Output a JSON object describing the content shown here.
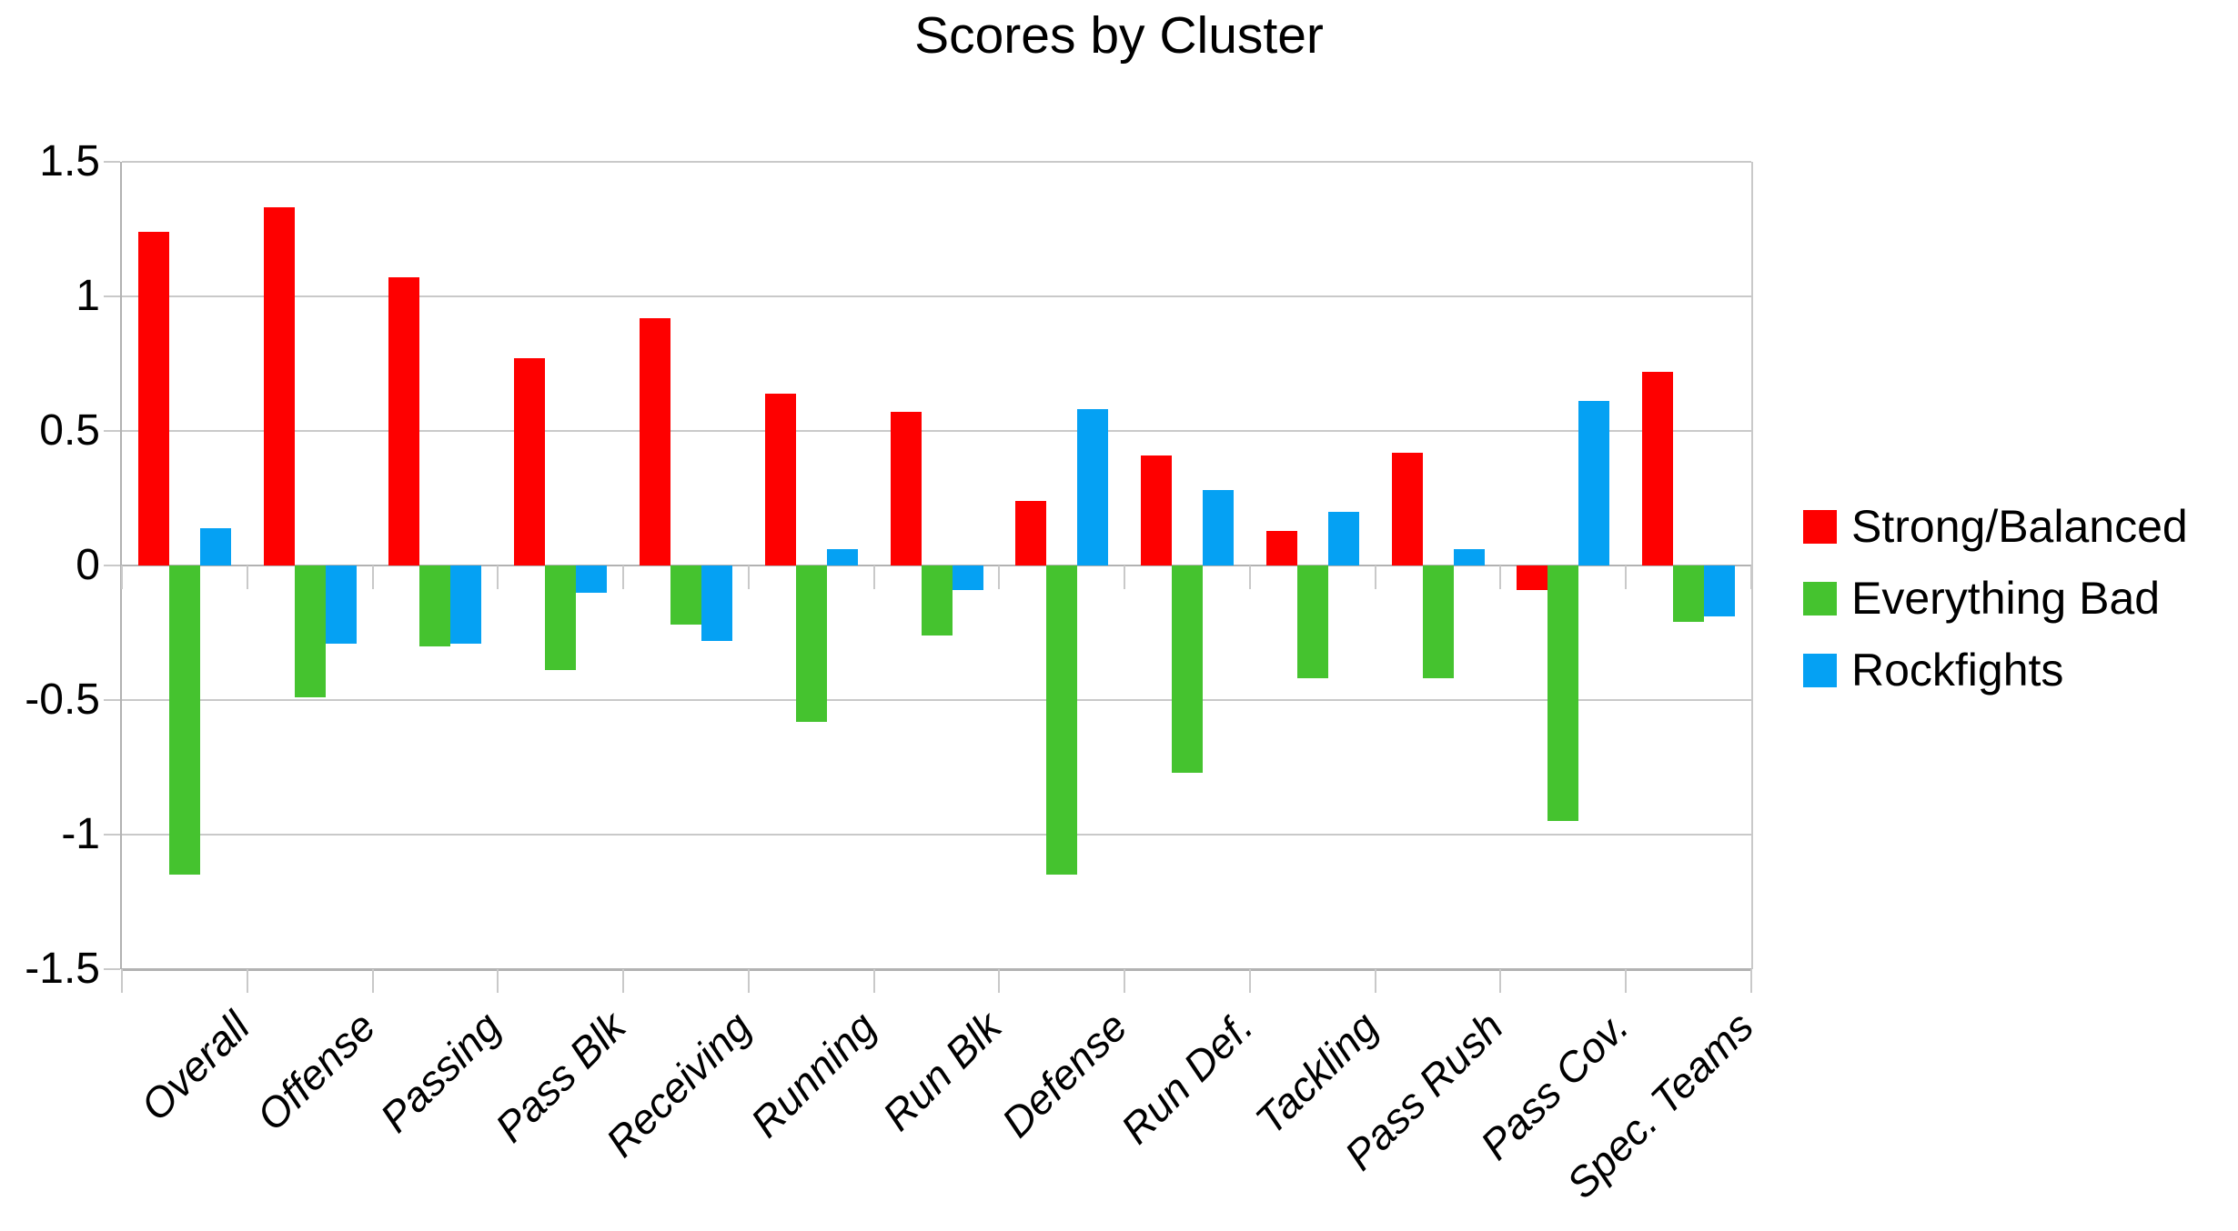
{
  "chart_data": {
    "type": "bar",
    "title": "Scores by Cluster",
    "categories": [
      "Overall",
      "Offense",
      "Passing",
      "Pass Blk",
      "Receiving",
      "Running",
      "Run Blk",
      "Defense",
      "Run Def.",
      "Tackling",
      "Pass Rush",
      "Pass Cov.",
      "Spec. Teams"
    ],
    "series": [
      {
        "name": "Strong/Balanced",
        "color": "#fe0000",
        "values": [
          1.24,
          1.33,
          1.07,
          0.77,
          0.92,
          0.64,
          0.57,
          0.24,
          0.41,
          0.13,
          0.42,
          -0.09,
          0.72
        ]
      },
      {
        "name": "Everything Bad",
        "color": "#45c32f",
        "values": [
          -1.15,
          -0.49,
          -0.3,
          -0.39,
          -0.22,
          -0.58,
          -0.26,
          -1.15,
          -0.77,
          -0.42,
          -0.42,
          -0.95,
          -0.21
        ]
      },
      {
        "name": "Rockfights",
        "color": "#05a1f3",
        "values": [
          0.14,
          -0.29,
          -0.29,
          -0.1,
          -0.28,
          0.06,
          -0.09,
          0.58,
          0.28,
          0.2,
          0.06,
          0.61,
          -0.19
        ]
      }
    ],
    "xlabel": "",
    "ylabel": "",
    "ylim": [
      -1.5,
      1.5
    ],
    "yticks": [
      1.5,
      1,
      0.5,
      0,
      -0.5,
      -1,
      -1.5
    ],
    "ytick_labels": [
      "1.5",
      "1",
      "0.5",
      "0",
      "-0.5",
      "-1",
      "-1.5"
    ],
    "grid": true,
    "legend_position": "right"
  },
  "colors": {
    "background": "#ffffff",
    "text": "#000000",
    "gridline": "#c9c9c9",
    "axis": "#b2b2b2"
  }
}
